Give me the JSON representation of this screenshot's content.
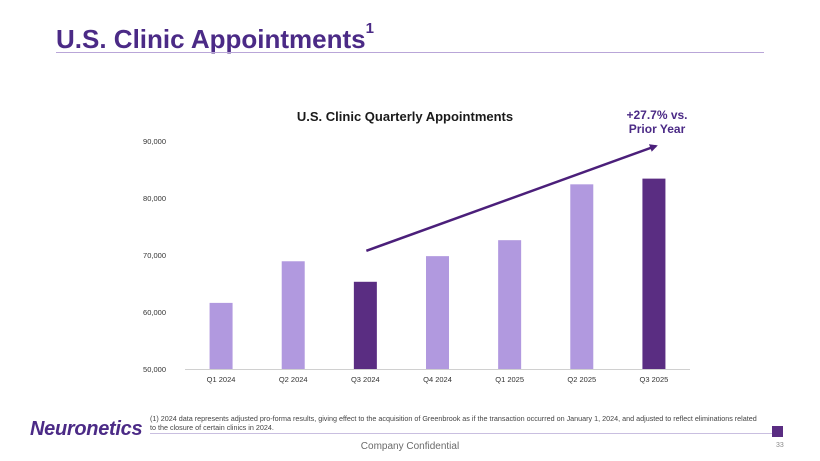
{
  "slide": {
    "title": "U.S. Clinic Appointments",
    "title_superscript": "1",
    "footnote": "(1) 2024 data represents adjusted pro-forma results, giving effect to the acquisition of Greenbrook as if the transaction occurred on January 1, 2024, and adjusted to reflect eliminations related to the closure of certain clinics in 2024.",
    "logo_text": "Neuronetics",
    "confidential": "Company Confidential",
    "page_number": "33"
  },
  "colors": {
    "brand_purple": "#4b2a86",
    "bar_light": "#b199df",
    "bar_dark": "#5a2d82",
    "arrow": "#4b1f7a"
  },
  "chart_data": {
    "type": "bar",
    "title": "U.S. Clinic Quarterly Appointments",
    "categories": [
      "Q1 2024",
      "Q2 2024",
      "Q3 2024",
      "Q4 2024",
      "Q1 2025",
      "Q2 2025",
      "Q3 2025"
    ],
    "values": [
      61600,
      68900,
      65300,
      69800,
      72600,
      82400,
      83400
    ],
    "highlighted": [
      "Q3 2024",
      "Q3 2025"
    ],
    "ylim": [
      50000,
      90000
    ],
    "yticks": [
      50000,
      60000,
      70000,
      80000,
      90000
    ],
    "ytick_labels": [
      "50,000",
      "60,000",
      "70,000",
      "80,000",
      "90,000"
    ],
    "xlabel": "",
    "ylabel": "",
    "grid": false,
    "annotation": {
      "text_line1": "+27.7% vs.",
      "text_line2": "Prior Year",
      "from_category": "Q3 2024",
      "to_category": "Q3 2025"
    }
  }
}
